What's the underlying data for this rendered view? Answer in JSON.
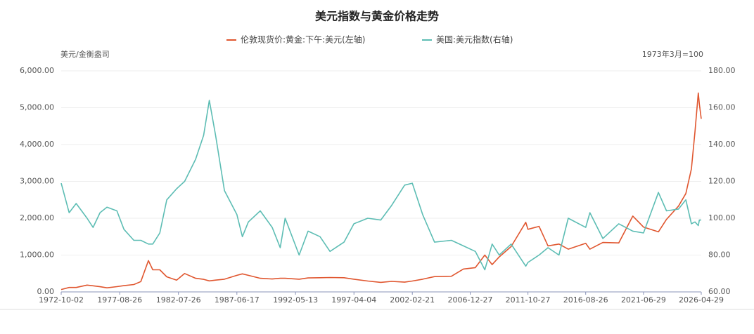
{
  "chart_data": {
    "type": "line",
    "title": "美元指数与黄金价格走势",
    "y_label": "美元/金衡盎司",
    "y2_label": "1973年3月=100",
    "x": [
      "1972-10-02",
      "1973-06-01",
      "1974-01-02",
      "1974-12-02",
      "1975-06-02",
      "1976-01-02",
      "1976-08-02",
      "1977-06-01",
      "1978-01-03",
      "1978-11-01",
      "1979-06-01",
      "1980-01-21",
      "1980-06-02",
      "1981-01-02",
      "1981-08-03",
      "1982-06-01",
      "1983-02-01",
      "1984-01-03",
      "1984-09-04",
      "1985-02-25",
      "1985-09-03",
      "1986-06-02",
      "1987-06-17",
      "1987-12-01",
      "1988-06-01",
      "1989-06-01",
      "1990-06-01",
      "1991-02-01",
      "1991-07-01",
      "1992-09-01",
      "1993-06-01",
      "1994-06-01",
      "1995-04-03",
      "1996-06-03",
      "1997-04-04",
      "1998-06-01",
      "1999-07-01",
      "2000-06-01",
      "2001-07-02",
      "2002-02-21",
      "2003-01-02",
      "2004-01-02",
      "2005-06-01",
      "2006-06-01",
      "2007-06-01",
      "2008-03-17",
      "2008-10-27",
      "2009-06-01",
      "2010-06-01",
      "2011-08-22",
      "2011-10-27",
      "2012-10-01",
      "2013-07-01",
      "2014-06-02",
      "2015-03-13",
      "2016-08-26",
      "2017-01-03",
      "2018-02-01",
      "2019-06-03",
      "2020-08-06",
      "2021-06-29",
      "2022-09-27",
      "2023-06-01",
      "2024-06-03",
      "2025-01-13",
      "2025-07-01",
      "2025-10-20",
      "2026-01-28",
      "2026-03-02",
      "2026-04-29"
    ],
    "series": [
      {
        "name": "伦敦现货价:黄金:下午:美元(左轴)",
        "color": "#e0562f",
        "values": [
          64,
          120,
          120,
          185,
          165,
          140,
          110,
          142,
          170,
          200,
          280,
          850,
          600,
          600,
          410,
          320,
          500,
          370,
          340,
          300,
          320,
          345,
          450,
          490,
          450,
          370,
          350,
          370,
          370,
          345,
          380,
          385,
          390,
          385,
          345,
          295,
          260,
          285,
          265,
          295,
          345,
          415,
          425,
          620,
          660,
          1000,
          740,
          950,
          1230,
          1890,
          1700,
          1780,
          1250,
          1300,
          1160,
          1320,
          1160,
          1340,
          1330,
          2060,
          1760,
          1630,
          1970,
          2330,
          2670,
          3340,
          4350,
          5400,
          5100,
          4700
        ]
      },
      {
        "name": "美国:美元指数(右轴)",
        "color": "#5dbdb4",
        "axis": "y2",
        "values": [
          119,
          103,
          108,
          100,
          95,
          103,
          106,
          104,
          94,
          88,
          88,
          86,
          86,
          92,
          110,
          116,
          120,
          132,
          145,
          164,
          145,
          115,
          102,
          90,
          98,
          104,
          95,
          84,
          100,
          80,
          93,
          90,
          82,
          87,
          97,
          100,
          99,
          107,
          118,
          119,
          102,
          87,
          88,
          85,
          82,
          72,
          86,
          80,
          86,
          74,
          76,
          80,
          84,
          80,
          100,
          95,
          103,
          89,
          97,
          93,
          92,
          114,
          104,
          105,
          110,
          97,
          98,
          96,
          99,
          99
        ]
      }
    ],
    "xlim": [
      "1972-10-02",
      "2026-04-29"
    ],
    "xticks": [
      "1972-10-02",
      "1977-08-26",
      "1982-07-26",
      "1987-06-17",
      "1992-05-13",
      "1997-04-04",
      "2002-02-21",
      "2006-12-27",
      "2011-10-27",
      "2016-08-26",
      "2021-06-29",
      "2026-04-29"
    ],
    "ylim": [
      0,
      6000
    ],
    "yticks": [
      {
        "value": 0,
        "label": "0.00"
      },
      {
        "value": 1000,
        "label": "1,000.00"
      },
      {
        "value": 2000,
        "label": "2,000.00"
      },
      {
        "value": 3000,
        "label": "3,000.00"
      },
      {
        "value": 4000,
        "label": "4,000.00"
      },
      {
        "value": 5000,
        "label": "5,000.00"
      },
      {
        "value": 6000,
        "label": "6,000.00"
      }
    ],
    "y2lim": [
      60,
      180
    ],
    "y2ticks": [
      {
        "value": 60,
        "label": "60.00"
      },
      {
        "value": 80,
        "label": "80.00"
      },
      {
        "value": 100,
        "label": "100.00"
      },
      {
        "value": 120,
        "label": "120.00"
      },
      {
        "value": 140,
        "label": "140.00"
      },
      {
        "value": 160,
        "label": "160.00"
      },
      {
        "value": 180,
        "label": "180.00"
      }
    ],
    "grid": true
  }
}
